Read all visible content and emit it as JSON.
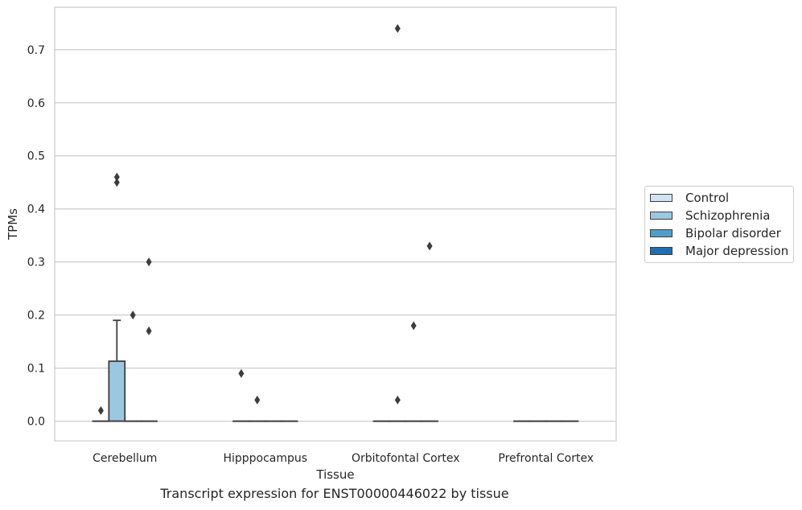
{
  "chart_data": {
    "type": "box",
    "xlabel": "Tissue",
    "ylabel": "TPMs",
    "caption": "Transcript expression for ENST00000446022 by tissue",
    "ylim": [
      -0.037,
      0.78
    ],
    "yticks": [
      0.0,
      0.1,
      0.2,
      0.3,
      0.4,
      0.5,
      0.6,
      0.7
    ],
    "ytick_labels": [
      "0.0",
      "0.1",
      "0.2",
      "0.3",
      "0.4",
      "0.5",
      "0.6",
      "0.7"
    ],
    "grid": "horizontal",
    "legend_position": "right",
    "categories": [
      "Cerebellum",
      "Hipppocampus",
      "Orbitofontal Cortex",
      "Prefrontal Cortex"
    ],
    "series": [
      {
        "name": "Control",
        "color": "#d1e2f2"
      },
      {
        "name": "Schizophrenia",
        "color": "#9ac8e0"
      },
      {
        "name": "Bipolar disorder",
        "color": "#529dcc"
      },
      {
        "name": "Major depression",
        "color": "#1f6eb3"
      }
    ],
    "boxes": [
      {
        "category": 0,
        "series": 0,
        "q1": 0,
        "median": 0,
        "q3": 0,
        "whisker_low": 0,
        "whisker_high": 0,
        "outliers": [
          0.02
        ]
      },
      {
        "category": 0,
        "series": 1,
        "q1": 0,
        "median": 0,
        "q3": 0.113,
        "whisker_low": 0,
        "whisker_high": 0.19,
        "outliers": [
          0.46,
          0.45
        ]
      },
      {
        "category": 0,
        "series": 2,
        "q1": 0,
        "median": 0,
        "q3": 0,
        "whisker_low": 0,
        "whisker_high": 0,
        "outliers": [
          0.2
        ]
      },
      {
        "category": 0,
        "series": 3,
        "q1": 0,
        "median": 0,
        "q3": 0,
        "whisker_low": 0,
        "whisker_high": 0,
        "outliers": [
          0.3,
          0.17
        ]
      },
      {
        "category": 1,
        "series": 0,
        "q1": 0,
        "median": 0,
        "q3": 0,
        "whisker_low": 0,
        "whisker_high": 0,
        "outliers": [
          0.09
        ]
      },
      {
        "category": 1,
        "series": 1,
        "q1": 0,
        "median": 0,
        "q3": 0,
        "whisker_low": 0,
        "whisker_high": 0,
        "outliers": [
          0.04
        ]
      },
      {
        "category": 1,
        "series": 2,
        "q1": 0,
        "median": 0,
        "q3": 0,
        "whisker_low": 0,
        "whisker_high": 0,
        "outliers": []
      },
      {
        "category": 1,
        "series": 3,
        "q1": 0,
        "median": 0,
        "q3": 0,
        "whisker_low": 0,
        "whisker_high": 0,
        "outliers": []
      },
      {
        "category": 2,
        "series": 0,
        "q1": 0,
        "median": 0,
        "q3": 0,
        "whisker_low": 0,
        "whisker_high": 0,
        "outliers": []
      },
      {
        "category": 2,
        "series": 1,
        "q1": 0,
        "median": 0,
        "q3": 0,
        "whisker_low": 0,
        "whisker_high": 0,
        "outliers": [
          0.74,
          0.04
        ]
      },
      {
        "category": 2,
        "series": 2,
        "q1": 0,
        "median": 0,
        "q3": 0,
        "whisker_low": 0,
        "whisker_high": 0,
        "outliers": [
          0.18
        ]
      },
      {
        "category": 2,
        "series": 3,
        "q1": 0,
        "median": 0,
        "q3": 0,
        "whisker_low": 0,
        "whisker_high": 0,
        "outliers": [
          0.33
        ]
      },
      {
        "category": 3,
        "series": 0,
        "q1": 0,
        "median": 0,
        "q3": 0,
        "whisker_low": 0,
        "whisker_high": 0,
        "outliers": []
      },
      {
        "category": 3,
        "series": 1,
        "q1": 0,
        "median": 0,
        "q3": 0,
        "whisker_low": 0,
        "whisker_high": 0,
        "outliers": []
      },
      {
        "category": 3,
        "series": 2,
        "q1": 0,
        "median": 0,
        "q3": 0,
        "whisker_low": 0,
        "whisker_high": 0,
        "outliers": []
      },
      {
        "category": 3,
        "series": 3,
        "q1": 0,
        "median": 0,
        "q3": 0,
        "whisker_low": 0,
        "whisker_high": 0,
        "outliers": []
      }
    ]
  }
}
